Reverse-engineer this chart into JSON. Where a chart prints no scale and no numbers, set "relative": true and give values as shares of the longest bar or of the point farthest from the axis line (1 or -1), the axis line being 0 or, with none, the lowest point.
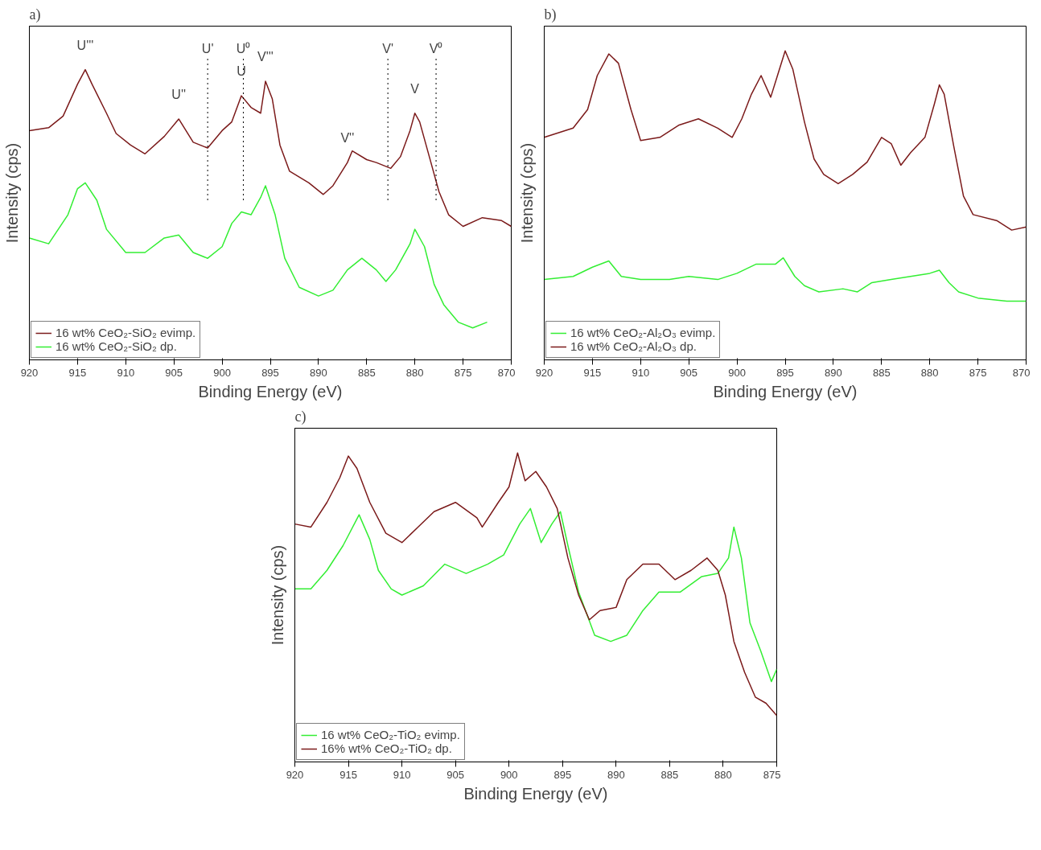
{
  "chart_data": [
    {
      "type": "line",
      "title": "a)",
      "xlabel": "Binding Energy (eV)",
      "ylabel": "Intensity (cps)",
      "relative": true,
      "xlim": [
        920,
        870
      ],
      "xticks": [
        920,
        915,
        910,
        905,
        900,
        895,
        890,
        885,
        880,
        875,
        870
      ],
      "legend": "bottom left",
      "grid": false,
      "line_style": "solid",
      "series": [
        {
          "name": "16 wt% CeO₂-SiO₂ evimp.",
          "color": "#7b1a1a",
          "x": [
            920,
            918,
            916.5,
            915,
            914.2,
            913.5,
            912,
            911,
            909.5,
            908,
            906,
            904.5,
            903,
            901.5,
            900,
            899,
            898,
            897,
            896,
            895.5,
            894.8,
            894,
            893,
            891,
            889.5,
            888.5,
            887,
            886.5,
            885,
            884,
            882.5,
            881.5,
            880.5,
            880,
            879.5,
            878.5,
            877.5,
            876.5,
            875,
            873,
            871,
            870
          ],
          "values": [
            0.79,
            0.8,
            0.84,
            0.95,
            1.0,
            0.95,
            0.85,
            0.78,
            0.74,
            0.71,
            0.77,
            0.83,
            0.75,
            0.73,
            0.79,
            0.82,
            0.91,
            0.87,
            0.85,
            0.96,
            0.9,
            0.74,
            0.65,
            0.61,
            0.57,
            0.6,
            0.68,
            0.72,
            0.69,
            0.68,
            0.66,
            0.7,
            0.79,
            0.85,
            0.82,
            0.7,
            0.58,
            0.5,
            0.46,
            0.49,
            0.48,
            0.46
          ]
        },
        {
          "name": "16 wt% CeO₂-SiO₂ dp.",
          "color": "#33ee33",
          "x": [
            920,
            918,
            916,
            915,
            914.2,
            913,
            912,
            910,
            908,
            906,
            904.5,
            903,
            901.5,
            900,
            899,
            898,
            897,
            896,
            895.5,
            894.5,
            893.5,
            892,
            890,
            888.5,
            887,
            885.5,
            884,
            883,
            882,
            880.5,
            880,
            879,
            878,
            877,
            875.5,
            874,
            872.5
          ],
          "values": [
            0.42,
            0.4,
            0.5,
            0.59,
            0.61,
            0.55,
            0.45,
            0.37,
            0.37,
            0.42,
            0.43,
            0.37,
            0.35,
            0.39,
            0.47,
            0.51,
            0.5,
            0.56,
            0.6,
            0.5,
            0.35,
            0.25,
            0.22,
            0.24,
            0.31,
            0.35,
            0.31,
            0.27,
            0.31,
            0.4,
            0.45,
            0.39,
            0.26,
            0.19,
            0.13,
            0.11,
            0.13
          ]
        }
      ],
      "annotations": [
        {
          "text": "U'''",
          "x": 914.2,
          "y": 1.0
        },
        {
          "text": "U''",
          "x": 904.5,
          "y": 0.83
        },
        {
          "text": "U",
          "x": 898,
          "y": 0.91
        },
        {
          "text": "V'''",
          "x": 895.5,
          "y": 0.96
        },
        {
          "text": "V''",
          "x": 887,
          "y": 0.68
        },
        {
          "text": "V",
          "x": 880,
          "y": 0.85
        }
      ],
      "ref_lines": [
        {
          "axis": "x",
          "value": 901.5,
          "label": "U'",
          "line_style": "dotted"
        },
        {
          "axis": "x",
          "value": 897.8,
          "label": "U⁰",
          "line_style": "dotted"
        },
        {
          "axis": "x",
          "value": 882.8,
          "label": "V'",
          "line_style": "dotted"
        },
        {
          "axis": "x",
          "value": 877.8,
          "label": "V⁰",
          "line_style": "dotted"
        }
      ]
    },
    {
      "type": "line",
      "title": "b)",
      "xlabel": "Binding Energy (eV)",
      "ylabel": "Intensity (cps)",
      "relative": true,
      "xlim": [
        920,
        870
      ],
      "xticks": [
        920,
        915,
        910,
        905,
        900,
        895,
        890,
        885,
        880,
        875,
        870
      ],
      "legend": "bottom left",
      "grid": false,
      "line_style": "solid",
      "series": [
        {
          "name": "16 wt% CeO₂-Al₂O₃ evimp.",
          "color": "#33ee33",
          "x": [
            920,
            917,
            915,
            913.3,
            912,
            910,
            907,
            905,
            902,
            900,
            898,
            896,
            895.2,
            894,
            893,
            891.5,
            889,
            887.5,
            886,
            884,
            882,
            880,
            879,
            878,
            877,
            875,
            872,
            870
          ],
          "values": [
            0.26,
            0.27,
            0.3,
            0.32,
            0.27,
            0.26,
            0.26,
            0.27,
            0.26,
            0.28,
            0.31,
            0.31,
            0.33,
            0.27,
            0.24,
            0.22,
            0.23,
            0.22,
            0.25,
            0.26,
            0.27,
            0.28,
            0.29,
            0.25,
            0.22,
            0.2,
            0.19,
            0.19
          ]
        },
        {
          "name": "16 wt% CeO₂-Al₂O₃ dp.",
          "color": "#7b1a1a",
          "x": [
            920,
            917,
            915.5,
            914.5,
            913.3,
            912.3,
            911,
            910,
            908,
            906,
            904,
            902,
            900.5,
            899.5,
            898.5,
            897.5,
            896.5,
            895.8,
            895,
            894.2,
            893,
            892,
            891,
            889.5,
            888,
            886.5,
            885,
            884,
            883,
            882,
            880.5,
            879.5,
            879,
            878.5,
            877.5,
            876.5,
            875.5,
            873,
            871.5,
            870
          ],
          "values": [
            0.72,
            0.75,
            0.81,
            0.92,
            0.99,
            0.96,
            0.81,
            0.71,
            0.72,
            0.76,
            0.78,
            0.75,
            0.72,
            0.78,
            0.86,
            0.92,
            0.85,
            0.92,
            1.0,
            0.94,
            0.77,
            0.65,
            0.6,
            0.57,
            0.6,
            0.64,
            0.72,
            0.7,
            0.63,
            0.67,
            0.72,
            0.83,
            0.89,
            0.86,
            0.69,
            0.53,
            0.47,
            0.45,
            0.42,
            0.43
          ]
        }
      ]
    },
    {
      "type": "line",
      "title": "c)",
      "xlabel": "Binding Energy (eV)",
      "ylabel": "Intensity (cps)",
      "relative": true,
      "xlim": [
        920,
        875
      ],
      "xticks": [
        920,
        915,
        910,
        905,
        900,
        895,
        890,
        885,
        880,
        875
      ],
      "legend": "bottom left",
      "grid": false,
      "line_style": "solid",
      "series": [
        {
          "name": "16 wt% CeO₂-TiO₂ evimp.",
          "color": "#33ee33",
          "x": [
            920,
            918.5,
            917,
            915.5,
            914,
            913,
            912.2,
            911,
            910,
            908,
            906,
            904,
            902,
            900.5,
            899,
            898,
            897,
            896,
            895.2,
            894.5,
            893.5,
            892,
            890.5,
            889,
            887.5,
            886,
            884,
            882,
            880.5,
            879.5,
            879,
            878.3,
            877.5,
            876.5,
            875.5,
            875
          ],
          "values": [
            0.56,
            0.56,
            0.62,
            0.7,
            0.8,
            0.72,
            0.62,
            0.56,
            0.54,
            0.57,
            0.64,
            0.61,
            0.64,
            0.67,
            0.77,
            0.82,
            0.71,
            0.77,
            0.81,
            0.7,
            0.55,
            0.41,
            0.39,
            0.41,
            0.49,
            0.55,
            0.55,
            0.6,
            0.61,
            0.66,
            0.76,
            0.66,
            0.45,
            0.36,
            0.26,
            0.3
          ]
        },
        {
          "name": "16% wt% CeO₂-TiO₂ dp.",
          "color": "#7b1a1a",
          "x": [
            920,
            918.5,
            917,
            915.8,
            915,
            914.2,
            913,
            911.5,
            910,
            908.5,
            907,
            905,
            903,
            902.5,
            901,
            900,
            899.2,
            898.5,
            897.5,
            896.5,
            895.5,
            894.5,
            893.5,
            892.5,
            891.5,
            890,
            889,
            887.5,
            886,
            884.5,
            883,
            881.5,
            880.5,
            879.8,
            879,
            878,
            877,
            876,
            875
          ],
          "values": [
            0.77,
            0.76,
            0.84,
            0.92,
            0.99,
            0.95,
            0.84,
            0.74,
            0.71,
            0.76,
            0.81,
            0.84,
            0.79,
            0.76,
            0.84,
            0.89,
            1.0,
            0.91,
            0.94,
            0.89,
            0.82,
            0.66,
            0.54,
            0.46,
            0.49,
            0.5,
            0.59,
            0.64,
            0.64,
            0.59,
            0.62,
            0.66,
            0.62,
            0.54,
            0.39,
            0.29,
            0.21,
            0.19,
            0.15
          ]
        }
      ]
    }
  ]
}
